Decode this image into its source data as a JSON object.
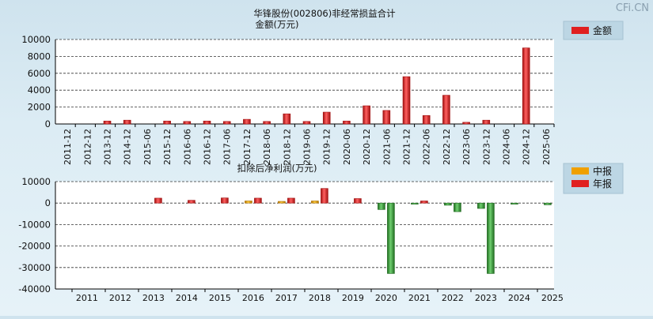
{
  "watermark": "CFi.CN",
  "colors": {
    "red": "#e02020",
    "red_dark": "#a01010",
    "orange": "#f0a000",
    "orange_dark": "#b07000",
    "green": "#40a040",
    "green_dark": "#1f6a1f"
  },
  "chart_data": [
    {
      "type": "bar",
      "title": "华锋股份(002806)非经常损益合计",
      "ylabel": "金额(万元)",
      "ylim": [
        0,
        10000
      ],
      "yticks": [
        0,
        2000,
        4000,
        6000,
        8000,
        10000
      ],
      "grid": true,
      "legend_position": "top-right",
      "categories": [
        "2011-12",
        "2012-12",
        "2013-12",
        "2014-12",
        "2015-06",
        "2015-12",
        "2016-06",
        "2016-12",
        "2017-06",
        "2017-12",
        "2018-06",
        "2018-12",
        "2019-06",
        "2019-12",
        "2020-06",
        "2020-12",
        "2021-06",
        "2021-12",
        "2022-06",
        "2022-12",
        "2023-06",
        "2023-12",
        "2024-06",
        "2024-12",
        "2025-06"
      ],
      "series": [
        {
          "name": "金额",
          "color": "#e02020",
          "values": [
            0,
            0,
            350,
            450,
            0,
            350,
            300,
            350,
            300,
            550,
            300,
            1200,
            300,
            1400,
            350,
            2150,
            1600,
            5600,
            1000,
            3400,
            200,
            450,
            0,
            9000,
            0
          ]
        }
      ]
    },
    {
      "type": "bar",
      "title": "扣除后净利润(万元)",
      "ylim": [
        -40000,
        10000
      ],
      "yticks": [
        10000,
        0,
        -10000,
        -20000,
        -30000,
        -40000
      ],
      "grid": true,
      "legend_position": "top-right",
      "categories": [
        "2011",
        "2012",
        "2013",
        "2014",
        "2015",
        "2016",
        "2017",
        "2018",
        "2019",
        "2020",
        "2021",
        "2022",
        "2023",
        "2024",
        "2025"
      ],
      "series": [
        {
          "name": "中报",
          "color": "#f0a000",
          "values": [
            0,
            0,
            0,
            0,
            0,
            1000,
            800,
            1000,
            0,
            -3000,
            -500,
            -1000,
            -2500,
            -500,
            -800
          ]
        },
        {
          "name": "年报",
          "color": "#e02020",
          "values": [
            0,
            0,
            2300,
            1300,
            2400,
            2300,
            2300,
            6800,
            2100,
            -32800,
            1000,
            -4000,
            -32800,
            0,
            0
          ]
        }
      ]
    }
  ]
}
